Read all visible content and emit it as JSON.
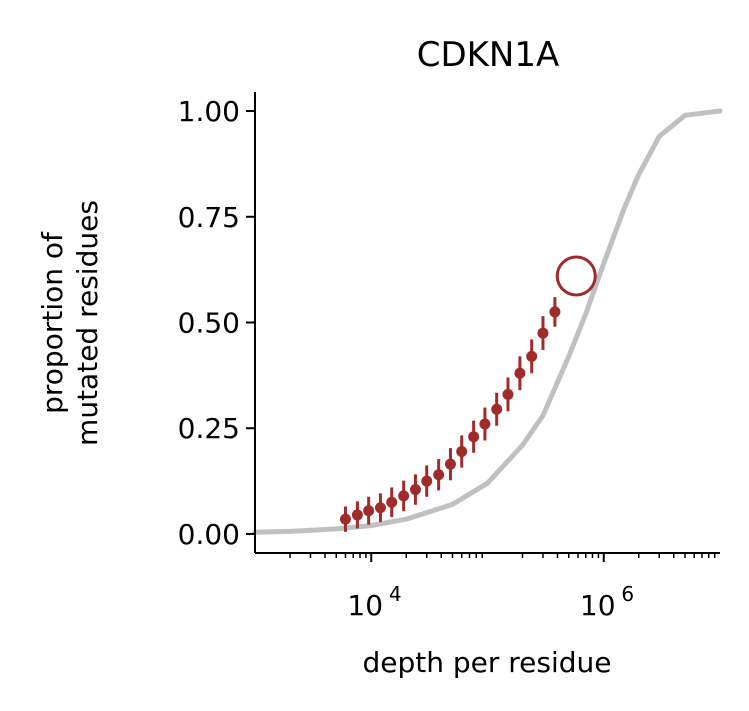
{
  "chart_data": {
    "type": "scatter",
    "title": "CDKN1A",
    "xlabel": "depth per residue",
    "ylabel_lines": [
      "proportion of",
      "mutated residues"
    ],
    "x_scale": "log",
    "xlim": [
      1000,
      10000000
    ],
    "ylim": [
      -0.045,
      1.045
    ],
    "x_ticks": [
      {
        "value": 10000,
        "base": "10",
        "exp": "4"
      },
      {
        "value": 1000000,
        "base": "10",
        "exp": "6"
      }
    ],
    "y_ticks": [
      {
        "value": 0.0,
        "label": "0.00"
      },
      {
        "value": 0.25,
        "label": "0.25"
      },
      {
        "value": 0.5,
        "label": "0.50"
      },
      {
        "value": 0.75,
        "label": "0.75"
      },
      {
        "value": 1.0,
        "label": "1.00"
      }
    ],
    "grid": false,
    "curve": {
      "color": "#c0c0c0",
      "x": [
        1000,
        2000,
        5000,
        10000,
        20000,
        50000,
        100000,
        200000,
        300000,
        500000,
        700000,
        1000000,
        1500000,
        2000000,
        3000000,
        5000000,
        10000000
      ],
      "y": [
        0.004,
        0.006,
        0.012,
        0.02,
        0.035,
        0.07,
        0.12,
        0.21,
        0.28,
        0.42,
        0.52,
        0.64,
        0.77,
        0.85,
        0.94,
        0.99,
        1.0
      ]
    },
    "points": {
      "color": "#a02b2b",
      "x": [
        6000,
        7600,
        9500,
        12000,
        15000,
        19000,
        24000,
        30000,
        38000,
        48000,
        60000,
        76000,
        95000,
        120000,
        150000,
        190000,
        240000,
        300000,
        380000
      ],
      "y": [
        0.035,
        0.045,
        0.055,
        0.062,
        0.075,
        0.09,
        0.105,
        0.125,
        0.14,
        0.165,
        0.195,
        0.23,
        0.26,
        0.295,
        0.33,
        0.38,
        0.42,
        0.475,
        0.525
      ],
      "err": [
        0.03,
        0.032,
        0.033,
        0.034,
        0.035,
        0.036,
        0.036,
        0.037,
        0.037,
        0.038,
        0.038,
        0.038,
        0.039,
        0.039,
        0.04,
        0.04,
        0.04,
        0.04,
        0.035
      ]
    },
    "highlight": {
      "x": 580000,
      "y": 0.61,
      "color": "#a02b2b"
    }
  }
}
